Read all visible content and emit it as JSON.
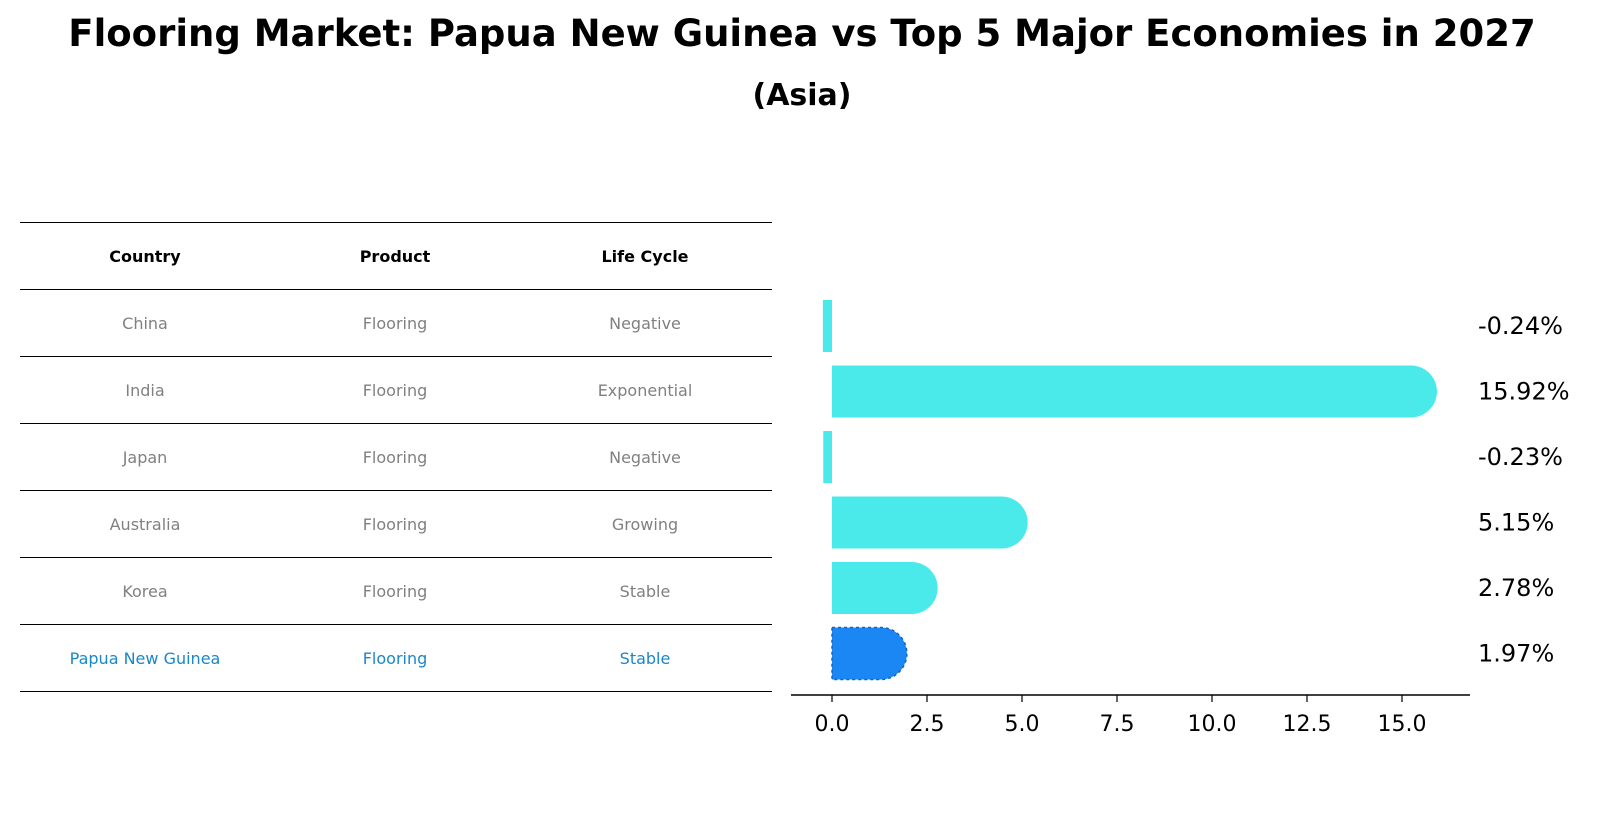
{
  "title": "Flooring Market: Papua New Guinea vs Top 5 Major Economies in 2027",
  "subtitle": "(Asia)",
  "table": {
    "headers": [
      "Country",
      "Product",
      "Life Cycle"
    ],
    "rows": [
      [
        "China",
        "Flooring",
        "Negative"
      ],
      [
        "India",
        "Flooring",
        "Exponential"
      ],
      [
        "Japan",
        "Flooring",
        "Negative"
      ],
      [
        "Australia",
        "Flooring",
        "Growing"
      ],
      [
        "Korea",
        "Flooring",
        "Stable"
      ],
      [
        "Papua New Guinea",
        "Flooring",
        "Stable"
      ]
    ]
  },
  "chart_data": {
    "type": "bar",
    "orientation": "horizontal",
    "categories": [
      "China",
      "India",
      "Japan",
      "Australia",
      "Korea",
      "Papua New Guinea"
    ],
    "values": [
      -0.24,
      15.92,
      -0.23,
      5.15,
      2.78,
      1.97
    ],
    "value_labels": [
      "-0.24%",
      "15.92%",
      "-0.23%",
      "5.15%",
      "2.78%",
      "1.97%"
    ],
    "highlight": "Papua New Guinea",
    "xlim": [
      -1.1,
      16.8
    ],
    "xticks": [
      0.0,
      2.5,
      5.0,
      7.5,
      10.0,
      12.5,
      15.0
    ],
    "xtick_labels": [
      "0.0",
      "2.5",
      "5.0",
      "7.5",
      "10.0",
      "12.5",
      "15.0"
    ],
    "colors": {
      "default": "#4beaea",
      "highlight": "#1a87f5"
    }
  }
}
